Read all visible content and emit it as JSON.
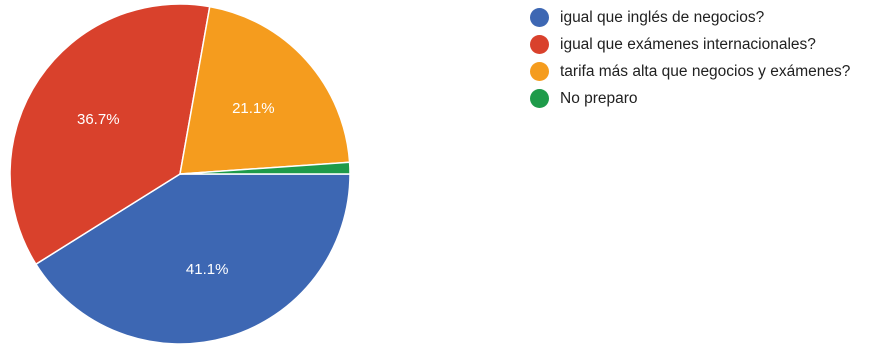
{
  "chart_data": {
    "type": "pie",
    "labels": [
      "igual que inglés de negocios?",
      "igual que exámenes internacionales?",
      "tarifa más alta que negocios y exámenes?",
      "No preparo"
    ],
    "values": [
      41.1,
      36.7,
      21.1,
      1.1
    ],
    "value_labels": [
      "41.1%",
      "36.7%",
      "21.1%",
      ""
    ],
    "colors": [
      "#3d67b3",
      "#d9412c",
      "#f59c1e",
      "#1e9b4a"
    ],
    "slice_border_color": "#ffffff",
    "start": "3 o'clock, clockwise",
    "legend_position": "right"
  }
}
